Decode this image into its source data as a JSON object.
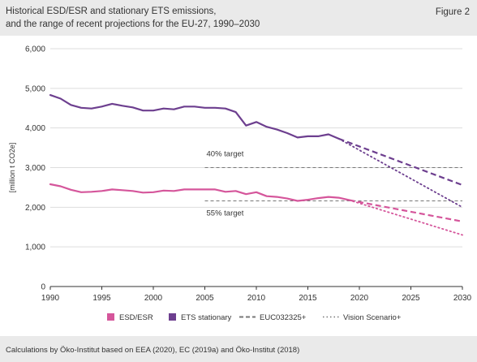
{
  "header": {
    "title_line1": "Historical ESD/ESR and stationary ETS emissions,",
    "title_line2": "and the range of recent projections for the EU-27, 1990–2030",
    "figure_label": "Figure 2"
  },
  "footer": {
    "source": "Calculations by Öko-Institut based on EEA (2020), EC (2019a) and Öko-Institut (2018)"
  },
  "colors": {
    "esd": "#d5569b",
    "ets": "#6d3f8f",
    "target": "#777777",
    "grid": "#dddddd",
    "axis": "#333333"
  },
  "chart_data": {
    "type": "line",
    "ylabel": "[million t CO2e]",
    "xlabel": "",
    "xlim": [
      1990,
      2030
    ],
    "ylim": [
      0,
      6000
    ],
    "x_ticks": [
      1990,
      1995,
      2000,
      2005,
      2010,
      2015,
      2020,
      2025,
      2030
    ],
    "y_ticks": [
      0,
      1000,
      2000,
      3000,
      4000,
      5000,
      6000
    ],
    "y_tick_labels": [
      "0",
      "1,000",
      "2,000",
      "3,000",
      "4,000",
      "5,000",
      "6,000"
    ],
    "grid": "horizontal",
    "legend_position": "bottom",
    "series": [
      {
        "name": "ETS stationary",
        "key": "ets",
        "style": "solid",
        "x": [
          1990,
          1991,
          1992,
          1993,
          1994,
          1995,
          1996,
          1997,
          1998,
          1999,
          2000,
          2001,
          2002,
          2003,
          2004,
          2005,
          2006,
          2007,
          2008,
          2009,
          2010,
          2011,
          2012,
          2013,
          2014,
          2015,
          2016,
          2017,
          2018
        ],
        "y": [
          4830,
          4740,
          4580,
          4510,
          4490,
          4540,
          4610,
          4560,
          4520,
          4440,
          4440,
          4490,
          4470,
          4540,
          4540,
          4510,
          4510,
          4490,
          4400,
          4060,
          4150,
          4030,
          3960,
          3870,
          3760,
          3790,
          3790,
          3840,
          3730
        ]
      },
      {
        "name": "ESD/ESR",
        "key": "esd",
        "style": "solid",
        "x": [
          1990,
          1991,
          1992,
          1993,
          1994,
          1995,
          1996,
          1997,
          1998,
          1999,
          2000,
          2001,
          2002,
          2003,
          2004,
          2005,
          2006,
          2007,
          2008,
          2009,
          2010,
          2011,
          2012,
          2013,
          2014,
          2015,
          2016,
          2017,
          2018,
          2019
        ],
        "y": [
          2580,
          2530,
          2440,
          2380,
          2390,
          2410,
          2450,
          2430,
          2410,
          2370,
          2380,
          2420,
          2410,
          2450,
          2450,
          2450,
          2450,
          2390,
          2410,
          2330,
          2380,
          2280,
          2260,
          2220,
          2160,
          2190,
          2230,
          2260,
          2240,
          2180
        ]
      },
      {
        "name": "EUC032325+",
        "key": "ets",
        "style": "dashed",
        "x": [
          2018,
          2030
        ],
        "y": [
          3730,
          2560
        ]
      },
      {
        "name": "EUC032325+",
        "key": "esd",
        "style": "dashed",
        "x": [
          2019,
          2030
        ],
        "y": [
          2180,
          1640
        ]
      },
      {
        "name": "Vision Scenario+",
        "key": "ets",
        "style": "dotted",
        "x": [
          2018,
          2030
        ],
        "y": [
          3730,
          2000
        ]
      },
      {
        "name": "Vision Scenario+",
        "key": "esd",
        "style": "dotted",
        "x": [
          2019,
          2030
        ],
        "y": [
          2180,
          1300
        ]
      }
    ],
    "reference_lines": [
      {
        "label": "40% target",
        "y": 3000,
        "x_start": 2005,
        "x_end": 2030,
        "label_position": "above"
      },
      {
        "label": "55% target",
        "y": 2160,
        "x_start": 2005,
        "x_end": 2030,
        "label_position": "below"
      }
    ],
    "legend": [
      {
        "label": "ESD/ESR",
        "kind": "swatch",
        "key": "esd"
      },
      {
        "label": "ETS stationary",
        "kind": "swatch",
        "key": "ets"
      },
      {
        "label": "EUC032325+",
        "kind": "dashed"
      },
      {
        "label": "Vision Scenario+",
        "kind": "dotted"
      }
    ]
  }
}
